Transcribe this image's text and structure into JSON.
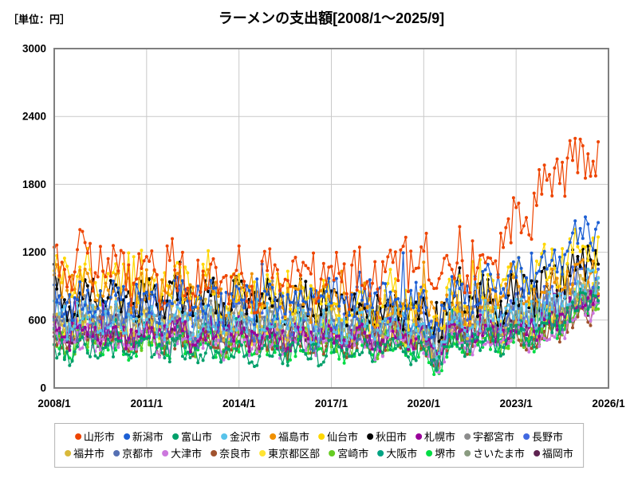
{
  "header": {
    "title": "ラーメンの支出額[2008/1～2025/9]",
    "unit_label": "［単位：円］"
  },
  "chart_data": {
    "type": "line",
    "title": "ラーメンの支出額[2008/1～2025/9]",
    "unit": "円",
    "x_start": "2008/1",
    "x_end": "2025/9",
    "points_per_series": 213,
    "x_axis_months_total": 216,
    "x_ticks": [
      "2008/1",
      "2011/1",
      "2014/1",
      "2017/1",
      "2020/1",
      "2023/1",
      "2026/1"
    ],
    "y_ticks": [
      0,
      600,
      1200,
      1800,
      2400,
      3000
    ],
    "ylim": [
      0,
      3000
    ],
    "grid": true,
    "grid_color": "#c9c9c9",
    "frame_color": "#7f7f7f",
    "legend_position": "bottom",
    "marker": "circle",
    "legend_rows": [
      10,
      10
    ],
    "series": [
      {
        "name": "山形市",
        "color": "#ee4400",
        "anchors": [
          [
            0,
            1150
          ],
          [
            0.15,
            980
          ],
          [
            0.45,
            930
          ],
          [
            0.62,
            1050
          ],
          [
            0.7,
            1200
          ],
          [
            0.76,
            1000
          ],
          [
            0.82,
            1250
          ],
          [
            0.92,
            1900
          ],
          [
            1,
            2150
          ]
        ],
        "noise": 300,
        "spike_p": 0.06,
        "spike": 500,
        "dip": 0.1,
        "seed": 11
      },
      {
        "name": "新潟市",
        "color": "#1c5fd4",
        "anchors": [
          [
            0,
            800
          ],
          [
            0.3,
            760
          ],
          [
            0.6,
            800
          ],
          [
            0.78,
            850
          ],
          [
            0.9,
            1000
          ],
          [
            1,
            1450
          ]
        ],
        "noise": 230,
        "spike_p": 0.05,
        "spike": 330,
        "dip": 0.3,
        "seed": 22
      },
      {
        "name": "富山市",
        "color": "#00a06a",
        "anchors": [
          [
            0,
            330
          ],
          [
            0.4,
            320
          ],
          [
            0.7,
            350
          ],
          [
            0.9,
            480
          ],
          [
            1,
            880
          ]
        ],
        "noise": 140,
        "spike_p": 0.04,
        "spike": 260,
        "dip": 0.3,
        "seed": 33
      },
      {
        "name": "金沢市",
        "color": "#58c3ea",
        "anchors": [
          [
            0,
            620
          ],
          [
            0.4,
            560
          ],
          [
            0.7,
            560
          ],
          [
            0.9,
            650
          ],
          [
            1,
            1000
          ]
        ],
        "noise": 185,
        "spike_p": 0.04,
        "spike": 260,
        "dip": 0.35,
        "seed": 44
      },
      {
        "name": "福島市",
        "color": "#f09000",
        "anchors": [
          [
            0,
            950
          ],
          [
            0.3,
            820
          ],
          [
            0.6,
            720
          ],
          [
            0.8,
            760
          ],
          [
            1,
            1020
          ]
        ],
        "noise": 225,
        "spike_p": 0.05,
        "spike": 300,
        "dip": 0.2,
        "seed": 55
      },
      {
        "name": "仙台市",
        "color": "#ffd700",
        "anchors": [
          [
            0,
            1020
          ],
          [
            0.3,
            860
          ],
          [
            0.6,
            760
          ],
          [
            0.8,
            800
          ],
          [
            1,
            1280
          ]
        ],
        "noise": 250,
        "spike_p": 0.05,
        "spike": 330,
        "dip": 0.35,
        "seed": 66
      },
      {
        "name": "秋田市",
        "color": "#000000",
        "anchors": [
          [
            0,
            820
          ],
          [
            0.4,
            760
          ],
          [
            0.7,
            700
          ],
          [
            0.9,
            860
          ],
          [
            1,
            1180
          ]
        ],
        "noise": 235,
        "spike_p": 0.05,
        "spike": 330,
        "dip": 0.3,
        "seed": 77
      },
      {
        "name": "札幌市",
        "color": "#990099",
        "anchors": [
          [
            0,
            500
          ],
          [
            0.4,
            460
          ],
          [
            0.7,
            480
          ],
          [
            0.9,
            560
          ],
          [
            1,
            830
          ]
        ],
        "noise": 160,
        "spike_p": 0.04,
        "spike": 240,
        "dip": 0.35,
        "seed": 88
      },
      {
        "name": "宇都宮市",
        "color": "#8c8c8c",
        "anchors": [
          [
            0,
            660
          ],
          [
            0.4,
            610
          ],
          [
            0.7,
            620
          ],
          [
            0.9,
            680
          ],
          [
            1,
            930
          ]
        ],
        "noise": 180,
        "spike_p": 0.04,
        "spike": 250,
        "dip": 0.3,
        "seed": 99
      },
      {
        "name": "長野市",
        "color": "#4169e1",
        "anchors": [
          [
            0,
            650
          ],
          [
            0.4,
            610
          ],
          [
            0.7,
            640
          ],
          [
            0.9,
            730
          ],
          [
            1,
            1080
          ]
        ],
        "noise": 200,
        "spike_p": 0.04,
        "spike": 280,
        "dip": 0.3,
        "seed": 110
      },
      {
        "name": "福井市",
        "color": "#d9b93a",
        "anchors": [
          [
            0,
            660
          ],
          [
            0.4,
            570
          ],
          [
            0.7,
            580
          ],
          [
            0.9,
            640
          ],
          [
            1,
            930
          ]
        ],
        "noise": 190,
        "spike_p": 0.04,
        "spike": 260,
        "dip": 0.3,
        "seed": 121
      },
      {
        "name": "京都市",
        "color": "#5570b3",
        "anchors": [
          [
            0,
            520
          ],
          [
            0.4,
            480
          ],
          [
            0.7,
            500
          ],
          [
            0.9,
            570
          ],
          [
            1,
            870
          ]
        ],
        "noise": 160,
        "spike_p": 0.04,
        "spike": 230,
        "dip": 0.35,
        "seed": 132
      },
      {
        "name": "大津市",
        "color": "#cc77dd",
        "anchors": [
          [
            0,
            430
          ],
          [
            0.4,
            390
          ],
          [
            0.7,
            400
          ],
          [
            0.9,
            470
          ],
          [
            1,
            760
          ]
        ],
        "noise": 150,
        "spike_p": 0.04,
        "spike": 220,
        "dip": 0.35,
        "seed": 143
      },
      {
        "name": "奈良市",
        "color": "#a0522d",
        "anchors": [
          [
            0,
            440
          ],
          [
            0.4,
            400
          ],
          [
            0.7,
            420
          ],
          [
            0.9,
            470
          ],
          [
            1,
            740
          ]
        ],
        "noise": 150,
        "spike_p": 0.04,
        "spike": 210,
        "dip": 0.35,
        "seed": 154
      },
      {
        "name": "東京都区部",
        "color": "#ffe433",
        "anchors": [
          [
            0,
            570
          ],
          [
            0.4,
            530
          ],
          [
            0.7,
            540
          ],
          [
            0.9,
            590
          ],
          [
            1,
            870
          ]
        ],
        "noise": 165,
        "spike_p": 0.04,
        "spike": 230,
        "dip": 0.35,
        "seed": 165
      },
      {
        "name": "宮崎市",
        "color": "#66cc22",
        "anchors": [
          [
            0,
            430
          ],
          [
            0.4,
            400
          ],
          [
            0.7,
            420
          ],
          [
            0.9,
            480
          ],
          [
            1,
            770
          ]
        ],
        "noise": 150,
        "spike_p": 0.04,
        "spike": 220,
        "dip": 0.3,
        "seed": 176
      },
      {
        "name": "大阪市",
        "color": "#00a383",
        "anchors": [
          [
            0,
            480
          ],
          [
            0.4,
            450
          ],
          [
            0.7,
            470
          ],
          [
            0.9,
            540
          ],
          [
            1,
            920
          ]
        ],
        "noise": 160,
        "spike_p": 0.04,
        "spike": 240,
        "dip": 0.4,
        "seed": 187
      },
      {
        "name": "堺市",
        "color": "#00dd44",
        "anchors": [
          [
            0,
            380
          ],
          [
            0.4,
            355
          ],
          [
            0.7,
            370
          ],
          [
            0.9,
            450
          ],
          [
            1,
            820
          ]
        ],
        "noise": 145,
        "spike_p": 0.04,
        "spike": 220,
        "dip": 0.35,
        "seed": 198
      },
      {
        "name": "さいたま市",
        "color": "#8a9b80",
        "anchors": [
          [
            0,
            560
          ],
          [
            0.4,
            510
          ],
          [
            0.7,
            520
          ],
          [
            0.9,
            580
          ],
          [
            1,
            840
          ]
        ],
        "noise": 165,
        "spike_p": 0.04,
        "spike": 230,
        "dip": 0.3,
        "seed": 209
      },
      {
        "name": "福岡市",
        "color": "#5e2350",
        "anchors": [
          [
            0,
            520
          ],
          [
            0.4,
            480
          ],
          [
            0.7,
            500
          ],
          [
            0.9,
            560
          ],
          [
            1,
            830
          ]
        ],
        "noise": 155,
        "spike_p": 0.04,
        "spike": 220,
        "dip": 0.3,
        "seed": 220
      }
    ]
  }
}
